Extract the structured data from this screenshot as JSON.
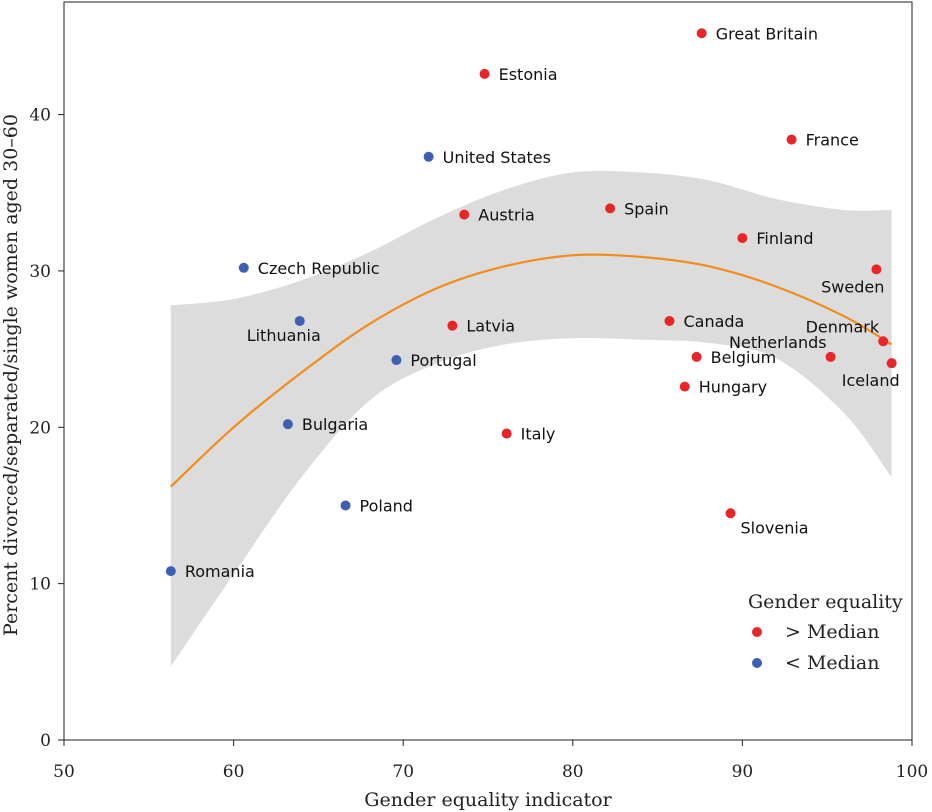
{
  "chart_data": {
    "type": "scatter",
    "title": "",
    "xlabel": "Gender equality indicator",
    "ylabel": "Percent divorced/separated/single women aged 30–60",
    "xlim": [
      50,
      100
    ],
    "ylim": [
      0,
      47
    ],
    "xticks": [
      "50",
      "60",
      "70",
      "80",
      "90",
      "100"
    ],
    "yticks": [
      "0",
      "10",
      "20",
      "30",
      "40"
    ],
    "colors": {
      "above": "#e8262a",
      "below": "#3e5fb4",
      "curve": "#f28c1c",
      "band": "#dcdcdc"
    },
    "legend": {
      "title": "Gender equality",
      "placement": "bottom-right",
      "entries": [
        {
          "label": "> Median",
          "group": "above"
        },
        {
          "label": "< Median",
          "group": "below"
        }
      ]
    },
    "points": [
      {
        "name": "Great Britain",
        "x": 87.6,
        "y": 45.2,
        "group": "above",
        "anchor": "right"
      },
      {
        "name": "Estonia",
        "x": 74.8,
        "y": 42.6,
        "group": "above",
        "anchor": "right"
      },
      {
        "name": "France",
        "x": 92.9,
        "y": 38.4,
        "group": "above",
        "anchor": "right"
      },
      {
        "name": "United States",
        "x": 71.5,
        "y": 37.3,
        "group": "below",
        "anchor": "right"
      },
      {
        "name": "Spain",
        "x": 82.2,
        "y": 34.0,
        "group": "above",
        "anchor": "right"
      },
      {
        "name": "Austria",
        "x": 73.6,
        "y": 33.6,
        "group": "above",
        "anchor": "right"
      },
      {
        "name": "Finland",
        "x": 90.0,
        "y": 32.1,
        "group": "above",
        "anchor": "right"
      },
      {
        "name": "Czech Republic",
        "x": 60.6,
        "y": 30.2,
        "group": "below",
        "anchor": "right"
      },
      {
        "name": "Sweden",
        "x": 97.9,
        "y": 30.1,
        "group": "above",
        "anchor": "below-left"
      },
      {
        "name": "Lithuania",
        "x": 63.9,
        "y": 26.8,
        "group": "below",
        "anchor": "below"
      },
      {
        "name": "Latvia",
        "x": 72.9,
        "y": 26.5,
        "group": "above",
        "anchor": "right"
      },
      {
        "name": "Canada",
        "x": 85.7,
        "y": 26.8,
        "group": "above",
        "anchor": "right"
      },
      {
        "name": "Denmark",
        "x": 98.3,
        "y": 25.5,
        "group": "above",
        "anchor": "above-left"
      },
      {
        "name": "Belgium",
        "x": 87.3,
        "y": 24.5,
        "group": "above",
        "anchor": "right"
      },
      {
        "name": "Netherlands",
        "x": 95.2,
        "y": 24.5,
        "group": "above",
        "anchor": "above-left"
      },
      {
        "name": "Portugal",
        "x": 69.6,
        "y": 24.3,
        "group": "below",
        "anchor": "right"
      },
      {
        "name": "Iceland",
        "x": 98.8,
        "y": 24.1,
        "group": "above",
        "anchor": "below-left"
      },
      {
        "name": "Hungary",
        "x": 86.6,
        "y": 22.6,
        "group": "above",
        "anchor": "right"
      },
      {
        "name": "Bulgaria",
        "x": 63.2,
        "y": 20.2,
        "group": "below",
        "anchor": "right"
      },
      {
        "name": "Italy",
        "x": 76.1,
        "y": 19.6,
        "group": "above",
        "anchor": "right"
      },
      {
        "name": "Poland",
        "x": 66.6,
        "y": 15.0,
        "group": "below",
        "anchor": "right"
      },
      {
        "name": "Slovenia",
        "x": 89.3,
        "y": 14.5,
        "group": "above",
        "anchor": "below-right"
      },
      {
        "name": "Romania",
        "x": 56.3,
        "y": 10.8,
        "group": "below",
        "anchor": "right"
      }
    ],
    "fit": {
      "x": [
        56.3,
        60,
        64,
        68,
        72,
        76,
        80,
        84,
        88,
        92,
        96,
        98.8
      ],
      "y": [
        16.2,
        20.0,
        23.5,
        26.6,
        28.9,
        30.3,
        31.0,
        30.9,
        30.3,
        29.0,
        27.1,
        25.3
      ],
      "lower": [
        4.7,
        10.6,
        16.8,
        21.7,
        24.1,
        25.3,
        25.7,
        25.6,
        25.4,
        24.4,
        20.9,
        16.8
      ],
      "upper": [
        27.8,
        28.2,
        29.4,
        31.2,
        33.4,
        35.2,
        36.3,
        36.3,
        35.8,
        34.6,
        33.9,
        33.9
      ]
    }
  }
}
